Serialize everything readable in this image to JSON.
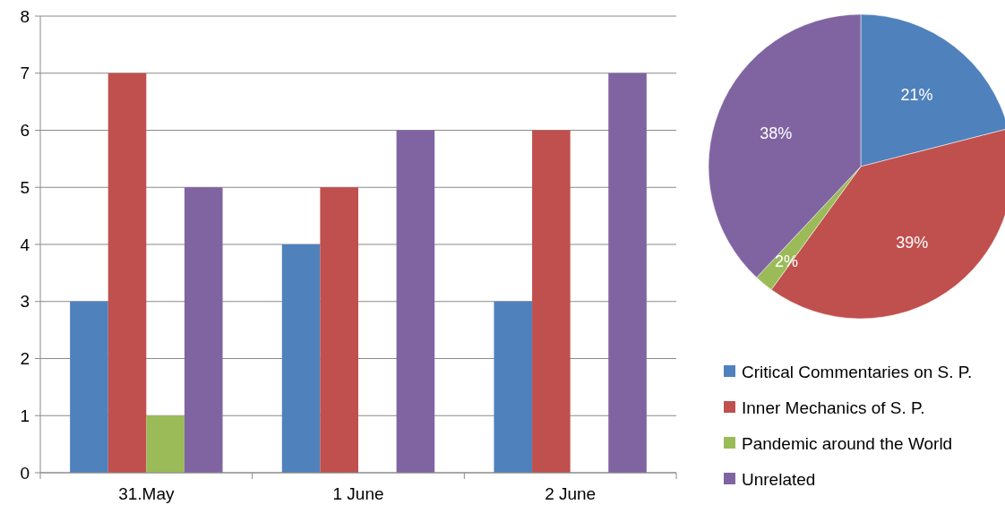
{
  "chart_data": [
    {
      "type": "bar",
      "categories": [
        "31.May",
        "1 June",
        "2 June"
      ],
      "ylim": [
        0,
        8
      ],
      "yticks": [
        0,
        1,
        2,
        3,
        4,
        5,
        6,
        7,
        8
      ],
      "grid": "y",
      "series": [
        {
          "color": "#4f81bd",
          "values": [
            3,
            4,
            3
          ]
        },
        {
          "color": "#c0504d",
          "values": [
            7,
            5,
            6
          ]
        },
        {
          "color": "#9bbb59",
          "values": [
            1,
            0,
            0
          ]
        },
        {
          "color": "#8064a2",
          "values": [
            5,
            6,
            7
          ]
        }
      ]
    },
    {
      "type": "pie",
      "categories": [
        "Critical Commentaries on S. P.",
        "Inner Mechanics of S. P.",
        "Pandemic around the World",
        "Unrelated"
      ],
      "values": [
        21,
        39,
        2,
        38
      ],
      "colors": [
        "#4f81bd",
        "#c0504d",
        "#9bbb59",
        "#8064a2"
      ],
      "value_labels": [
        "21%",
        "39%",
        "2%",
        "38%"
      ],
      "legend": "bottom"
    }
  ]
}
